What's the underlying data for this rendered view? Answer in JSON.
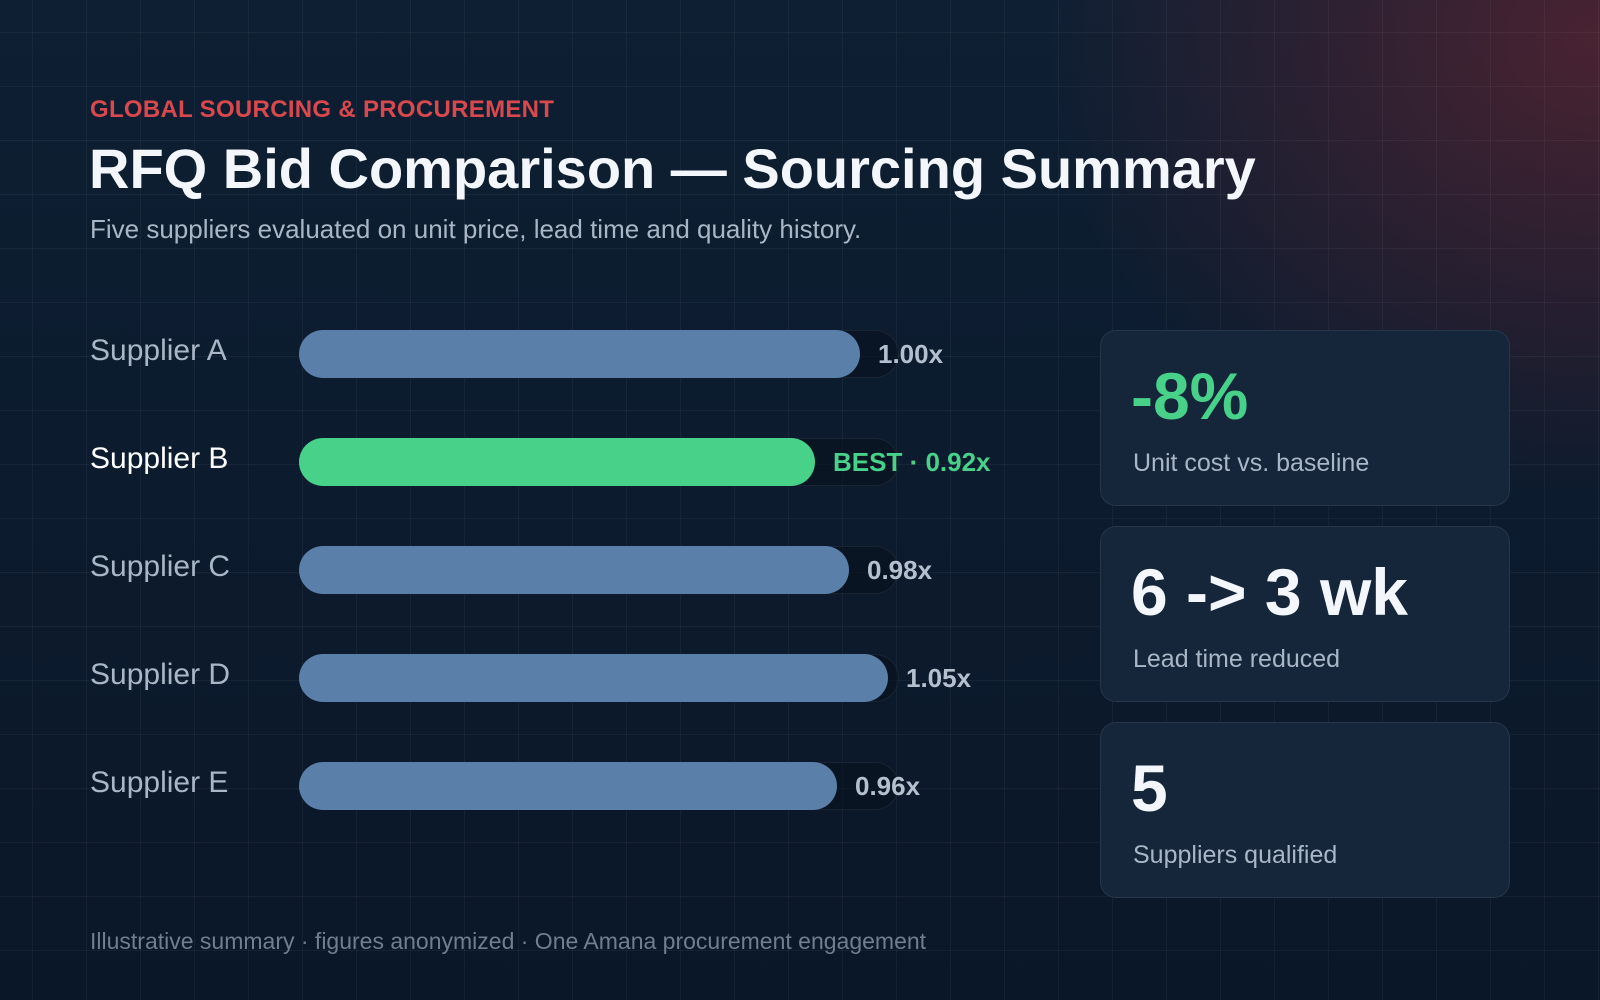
{
  "header": {
    "eyebrow": "GLOBAL SOURCING & PROCUREMENT",
    "title": "RFQ Bid Comparison — Sourcing Summary",
    "subtitle": "Five suppliers evaluated on unit price, lead time and quality history."
  },
  "chart_data": {
    "type": "bar",
    "orientation": "horizontal",
    "categories": [
      "Supplier A",
      "Supplier B",
      "Supplier C",
      "Supplier D",
      "Supplier E"
    ],
    "values": [
      1.0,
      0.92,
      0.98,
      1.05,
      0.96
    ],
    "value_labels": [
      "1.00x",
      "BEST · 0.92x",
      "0.98x",
      "1.05x",
      "0.96x"
    ],
    "highlight_index": 1,
    "xlim": [
      0,
      1.07
    ],
    "grid": false,
    "legend": "none"
  },
  "metrics": [
    {
      "value": "-8%",
      "label": "Unit cost vs. baseline",
      "accent": true
    },
    {
      "value": "6 -> 3 wk",
      "label": "Lead time reduced",
      "accent": false
    },
    {
      "value": "5",
      "label": "Suppliers qualified",
      "accent": false
    }
  ],
  "footnote": "Illustrative summary · figures anonymized · One Amana procurement engagement",
  "colors": {
    "eyebrow": "#d9484c",
    "bar": "#5a7fa8",
    "best_bar": "#47d189",
    "best_text": "#47d189",
    "value_text": "#b5c0cf",
    "metric_accent": "#47d189",
    "metric_default": "#f3f6fa"
  }
}
